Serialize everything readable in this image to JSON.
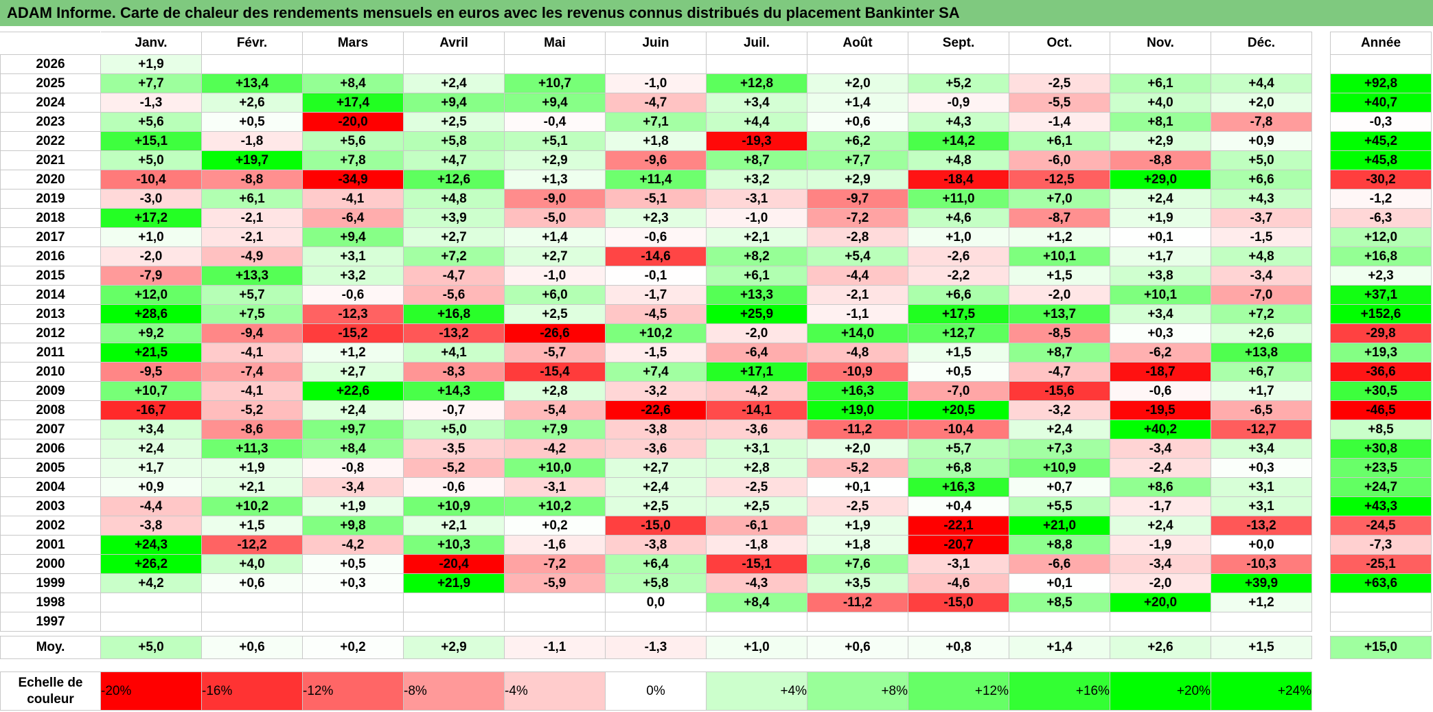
{
  "title": "ADAM Informe. Carte de chaleur des rendements mensuels en euros avec les revenus connus distribués du placement Bankinter SA",
  "chart_data": {
    "type": "heatmap",
    "months": [
      "Janv.",
      "Févr.",
      "Mars",
      "Avril",
      "Mai",
      "Juin",
      "Juil.",
      "Août",
      "Sept.",
      "Oct.",
      "Nov.",
      "Déc."
    ],
    "year_header": "Année",
    "rows": [
      {
        "year": "2026",
        "values": [
          "+1,9",
          "",
          "",
          "",
          "",
          "",
          "",
          "",
          "",
          "",
          "",
          ""
        ],
        "annual": ""
      },
      {
        "year": "2025",
        "values": [
          "+7,7",
          "+13,4",
          "+8,4",
          "+2,4",
          "+10,7",
          "-1,0",
          "+12,8",
          "+2,0",
          "+5,2",
          "-2,5",
          "+6,1",
          "+4,4"
        ],
        "annual": "+92,8"
      },
      {
        "year": "2024",
        "values": [
          "-1,3",
          "+2,6",
          "+17,4",
          "+9,4",
          "+9,4",
          "-4,7",
          "+3,4",
          "+1,4",
          "-0,9",
          "-5,5",
          "+4,0",
          "+2,0"
        ],
        "annual": "+40,7"
      },
      {
        "year": "2023",
        "values": [
          "+5,6",
          "+0,5",
          "-20,0",
          "+2,5",
          "-0,4",
          "+7,1",
          "+4,4",
          "+0,6",
          "+4,3",
          "-1,4",
          "+8,1",
          "-7,8"
        ],
        "annual": "-0,3"
      },
      {
        "year": "2022",
        "values": [
          "+15,1",
          "-1,8",
          "+5,6",
          "+5,8",
          "+5,1",
          "+1,8",
          "-19,3",
          "+6,2",
          "+14,2",
          "+6,1",
          "+2,9",
          "+0,9"
        ],
        "annual": "+45,2"
      },
      {
        "year": "2021",
        "values": [
          "+5,0",
          "+19,7",
          "+7,8",
          "+4,7",
          "+2,9",
          "-9,6",
          "+8,7",
          "+7,7",
          "+4,8",
          "-6,0",
          "-8,8",
          "+5,0"
        ],
        "annual": "+45,8"
      },
      {
        "year": "2020",
        "values": [
          "-10,4",
          "-8,8",
          "-34,9",
          "+12,6",
          "+1,3",
          "+11,4",
          "+3,2",
          "+2,9",
          "-18,4",
          "-12,5",
          "+29,0",
          "+6,6"
        ],
        "annual": "-30,2"
      },
      {
        "year": "2019",
        "values": [
          "-3,0",
          "+6,1",
          "-4,1",
          "+4,8",
          "-9,0",
          "-5,1",
          "-3,1",
          "-9,7",
          "+11,0",
          "+7,0",
          "+2,4",
          "+4,3"
        ],
        "annual": "-1,2"
      },
      {
        "year": "2018",
        "values": [
          "+17,2",
          "-2,1",
          "-6,4",
          "+3,9",
          "-5,0",
          "+2,3",
          "-1,0",
          "-7,2",
          "+4,6",
          "-8,7",
          "+1,9",
          "-3,7"
        ],
        "annual": "-6,3"
      },
      {
        "year": "2017",
        "values": [
          "+1,0",
          "-2,1",
          "+9,4",
          "+2,7",
          "+1,4",
          "-0,6",
          "+2,1",
          "-2,8",
          "+1,0",
          "+1,2",
          "+0,1",
          "-1,5"
        ],
        "annual": "+12,0"
      },
      {
        "year": "2016",
        "values": [
          "-2,0",
          "-4,9",
          "+3,1",
          "+7,2",
          "+2,7",
          "-14,6",
          "+8,2",
          "+5,4",
          "-2,6",
          "+10,1",
          "+1,7",
          "+4,8"
        ],
        "annual": "+16,8"
      },
      {
        "year": "2015",
        "values": [
          "-7,9",
          "+13,3",
          "+3,2",
          "-4,7",
          "-1,0",
          "-0,1",
          "+6,1",
          "-4,4",
          "-2,2",
          "+1,5",
          "+3,8",
          "-3,4"
        ],
        "annual": "+2,3"
      },
      {
        "year": "2014",
        "values": [
          "+12,0",
          "+5,7",
          "-0,6",
          "-5,6",
          "+6,0",
          "-1,7",
          "+13,3",
          "-2,1",
          "+6,6",
          "-2,0",
          "+10,1",
          "-7,0"
        ],
        "annual": "+37,1"
      },
      {
        "year": "2013",
        "values": [
          "+28,6",
          "+7,5",
          "-12,3",
          "+16,8",
          "+2,5",
          "-4,5",
          "+25,9",
          "-1,1",
          "+17,5",
          "+13,7",
          "+3,4",
          "+7,2"
        ],
        "annual": "+152,6"
      },
      {
        "year": "2012",
        "values": [
          "+9,2",
          "-9,4",
          "-15,2",
          "-13,2",
          "-26,6",
          "+10,2",
          "-2,0",
          "+14,0",
          "+12,7",
          "-8,5",
          "+0,3",
          "+2,6"
        ],
        "annual": "-29,8"
      },
      {
        "year": "2011",
        "values": [
          "+21,5",
          "-4,1",
          "+1,2",
          "+4,1",
          "-5,7",
          "-1,5",
          "-6,4",
          "-4,8",
          "+1,5",
          "+8,7",
          "-6,2",
          "+13,8"
        ],
        "annual": "+19,3"
      },
      {
        "year": "2010",
        "values": [
          "-9,5",
          "-7,4",
          "+2,7",
          "-8,3",
          "-15,4",
          "+7,4",
          "+17,1",
          "-10,9",
          "+0,5",
          "-4,7",
          "-18,7",
          "+6,7"
        ],
        "annual": "-36,6"
      },
      {
        "year": "2009",
        "values": [
          "+10,7",
          "-4,1",
          "+22,6",
          "+14,3",
          "+2,8",
          "-3,2",
          "-4,2",
          "+16,3",
          "-7,0",
          "-15,6",
          "-0,6",
          "+1,7"
        ],
        "annual": "+30,5"
      },
      {
        "year": "2008",
        "values": [
          "-16,7",
          "-5,2",
          "+2,4",
          "-0,7",
          "-5,4",
          "-22,6",
          "-14,1",
          "+19,0",
          "+20,5",
          "-3,2",
          "-19,5",
          "-6,5"
        ],
        "annual": "-46,5"
      },
      {
        "year": "2007",
        "values": [
          "+3,4",
          "-8,6",
          "+9,7",
          "+5,0",
          "+7,9",
          "-3,8",
          "-3,6",
          "-11,2",
          "-10,4",
          "+2,4",
          "+40,2",
          "-12,7"
        ],
        "annual": "+8,5"
      },
      {
        "year": "2006",
        "values": [
          "+2,4",
          "+11,3",
          "+8,4",
          "-3,5",
          "-4,2",
          "-3,6",
          "+3,1",
          "+2,0",
          "+5,7",
          "+7,3",
          "-3,4",
          "+3,4"
        ],
        "annual": "+30,8"
      },
      {
        "year": "2005",
        "values": [
          "+1,7",
          "+1,9",
          "-0,8",
          "-5,2",
          "+10,0",
          "+2,7",
          "+2,8",
          "-5,2",
          "+6,8",
          "+10,9",
          "-2,4",
          "+0,3"
        ],
        "annual": "+23,5"
      },
      {
        "year": "2004",
        "values": [
          "+0,9",
          "+2,1",
          "-3,4",
          "-0,6",
          "-3,1",
          "+2,4",
          "-2,5",
          "+0,1",
          "+16,3",
          "+0,7",
          "+8,6",
          "+3,1"
        ],
        "annual": "+24,7"
      },
      {
        "year": "2003",
        "values": [
          "-4,4",
          "+10,2",
          "+1,9",
          "+10,9",
          "+10,2",
          "+2,5",
          "+2,5",
          "-2,5",
          "+0,4",
          "+5,5",
          "-1,7",
          "+3,1"
        ],
        "annual": "+43,3"
      },
      {
        "year": "2002",
        "values": [
          "-3,8",
          "+1,5",
          "+9,8",
          "+2,1",
          "+0,2",
          "-15,0",
          "-6,1",
          "+1,9",
          "-22,1",
          "+21,0",
          "+2,4",
          "-13,2"
        ],
        "annual": "-24,5"
      },
      {
        "year": "2001",
        "values": [
          "+24,3",
          "-12,2",
          "-4,2",
          "+10,3",
          "-1,6",
          "-3,8",
          "-1,8",
          "+1,8",
          "-20,7",
          "+8,8",
          "-1,9",
          "+0,0"
        ],
        "annual": "-7,3"
      },
      {
        "year": "2000",
        "values": [
          "+26,2",
          "+4,0",
          "+0,5",
          "-20,4",
          "-7,2",
          "+6,4",
          "-15,1",
          "+7,6",
          "-3,1",
          "-6,6",
          "-3,4",
          "-10,3"
        ],
        "annual": "-25,1"
      },
      {
        "year": "1999",
        "values": [
          "+4,2",
          "+0,6",
          "+0,3",
          "+21,9",
          "-5,9",
          "+5,8",
          "-4,3",
          "+3,5",
          "-4,6",
          "+0,1",
          "-2,0",
          "+39,9"
        ],
        "annual": "+63,6"
      },
      {
        "year": "1998",
        "values": [
          "",
          "",
          "",
          "",
          "",
          "0,0",
          "+8,4",
          "-11,2",
          "-15,0",
          "+8,5",
          "+20,0",
          "+1,2"
        ],
        "annual": ""
      },
      {
        "year": "1997",
        "values": [
          "",
          "",
          "",
          "",
          "",
          "",
          "",
          "",
          "",
          "",
          "",
          ""
        ],
        "annual": ""
      }
    ],
    "average": {
      "label": "Moy.",
      "values": [
        "+5,0",
        "+0,6",
        "+0,2",
        "+2,9",
        "-1,1",
        "-1,3",
        "+1,0",
        "+0,6",
        "+0,8",
        "+1,4",
        "+2,6",
        "+1,5"
      ],
      "annual": "+15,0"
    },
    "scale": {
      "label": "Echelle de couleur",
      "steps": [
        {
          "text": "-20%",
          "value": -20
        },
        {
          "text": "-16%",
          "value": -16
        },
        {
          "text": "-12%",
          "value": -12
        },
        {
          "text": "-8%",
          "value": -8
        },
        {
          "text": "-4%",
          "value": -4
        },
        {
          "text": "0%",
          "value": 0
        },
        {
          "text": "+4%",
          "value": 4
        },
        {
          "text": "+8%",
          "value": 8
        },
        {
          "text": "+12%",
          "value": 12
        },
        {
          "text": "+16%",
          "value": 16
        },
        {
          "text": "+20%",
          "value": 20
        },
        {
          "text": "+24%",
          "value": 24
        }
      ]
    },
    "colors": {
      "negative": "#ff0000",
      "neutral": "#ffffff",
      "positive": "#00ff00"
    }
  }
}
